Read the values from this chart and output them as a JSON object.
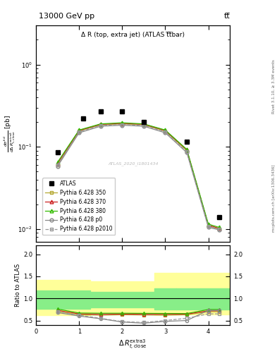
{
  "title_top": "13000 GeV pp",
  "title_top_right": "tt̅",
  "inner_title": "Δ R (top, extra jet) (ATLAS t̅t̅bar)",
  "watermark": "ATLAS_2020_I1801434",
  "rivet_label": "Rivet 3.1.10, ≥ 3.3M events",
  "mcplots_label": "mcplots.cern.ch [arXiv:1306.3436]",
  "ylabel_ratio": "Ratio to ATLAS",
  "xlim": [
    0,
    4.5
  ],
  "ylim_main": [
    0.007,
    3.0
  ],
  "ylim_ratio": [
    0.4,
    2.2
  ],
  "x_ticks": [
    0,
    1,
    2,
    3,
    4
  ],
  "ratio_yticks": [
    0.5,
    1.0,
    1.5,
    2.0
  ],
  "atlas_x": [
    0.5,
    1.1,
    1.5,
    2.0,
    2.5,
    3.5,
    4.25
  ],
  "atlas_y": [
    0.085,
    0.22,
    0.27,
    0.27,
    0.2,
    0.115,
    0.014
  ],
  "p350_x": [
    0.5,
    1.0,
    1.5,
    2.0,
    2.5,
    3.0,
    3.5,
    4.0,
    4.25
  ],
  "p350_y": [
    0.06,
    0.155,
    0.185,
    0.19,
    0.185,
    0.155,
    0.09,
    0.011,
    0.01
  ],
  "p370_x": [
    0.5,
    1.0,
    1.5,
    2.0,
    2.5,
    3.0,
    3.5,
    4.0,
    4.25
  ],
  "p370_y": [
    0.063,
    0.158,
    0.188,
    0.193,
    0.188,
    0.158,
    0.092,
    0.0112,
    0.0102
  ],
  "p380_x": [
    0.5,
    1.0,
    1.5,
    2.0,
    2.5,
    3.0,
    3.5,
    4.0,
    4.25
  ],
  "p380_y": [
    0.065,
    0.16,
    0.19,
    0.196,
    0.19,
    0.16,
    0.093,
    0.0115,
    0.0105
  ],
  "pp0_x": [
    0.5,
    1.0,
    1.5,
    2.0,
    2.5,
    3.0,
    3.5,
    4.0,
    4.25
  ],
  "pp0_y": [
    0.058,
    0.148,
    0.178,
    0.183,
    0.178,
    0.148,
    0.085,
    0.0105,
    0.0098
  ],
  "pp2010_x": [
    0.5,
    1.0,
    1.5,
    2.0,
    2.5,
    3.0,
    3.5,
    4.0,
    4.25
  ],
  "pp2010_y": [
    0.06,
    0.152,
    0.182,
    0.187,
    0.182,
    0.152,
    0.087,
    0.0108,
    0.01
  ],
  "r350_x": [
    0.5,
    1.0,
    1.5,
    2.0,
    2.5,
    3.0,
    3.5,
    4.0,
    4.25
  ],
  "r350_y": [
    0.7,
    0.63,
    0.62,
    0.63,
    0.625,
    0.62,
    0.63,
    0.7,
    0.7
  ],
  "r370_x": [
    0.5,
    1.0,
    1.5,
    2.0,
    2.5,
    3.0,
    3.5,
    4.0,
    4.25
  ],
  "r370_y": [
    0.73,
    0.65,
    0.64,
    0.645,
    0.64,
    0.64,
    0.645,
    0.72,
    0.72
  ],
  "r380_x": [
    0.5,
    1.0,
    1.5,
    2.0,
    2.5,
    3.0,
    3.5,
    4.0,
    4.25
  ],
  "r380_y": [
    0.76,
    0.67,
    0.665,
    0.665,
    0.662,
    0.66,
    0.658,
    0.75,
    0.75
  ],
  "rp0_x": [
    0.5,
    1.0,
    1.5,
    2.0,
    2.5,
    3.0,
    3.5,
    4.0,
    4.25
  ],
  "rp0_y": [
    0.68,
    0.6,
    0.54,
    0.465,
    0.44,
    0.48,
    0.5,
    0.73,
    0.73
  ],
  "rp2010_x": [
    0.5,
    1.0,
    1.5,
    2.0,
    2.5,
    3.0,
    3.5,
    4.0,
    4.25
  ],
  "rp2010_y": [
    0.7,
    0.62,
    0.55,
    0.475,
    0.455,
    0.5,
    0.55,
    0.65,
    0.65
  ],
  "yband_x_edges": [
    0.0,
    1.25,
    2.75,
    3.25,
    4.5
  ],
  "yellow_upper": [
    1.42,
    1.38,
    1.58,
    1.58,
    1.58
  ],
  "yellow_lower": [
    0.62,
    0.68,
    0.63,
    0.63,
    0.63
  ],
  "green_upper": [
    1.18,
    1.15,
    1.23,
    1.23,
    1.23
  ],
  "green_lower": [
    0.76,
    0.79,
    0.75,
    0.75,
    0.75
  ],
  "color_350": "#b5a832",
  "color_370": "#cc2222",
  "color_380": "#33bb00",
  "color_p0": "#888888",
  "color_p2010": "#999999",
  "color_yellow": "#ffff99",
  "color_green": "#88ee88"
}
